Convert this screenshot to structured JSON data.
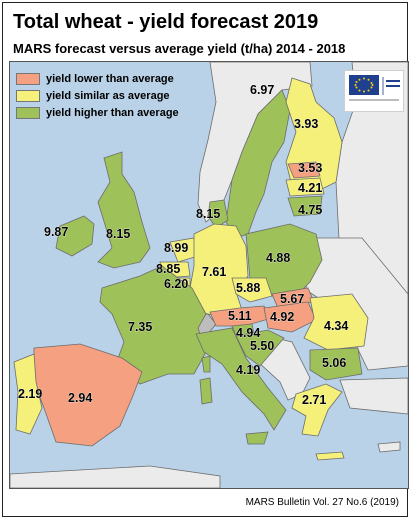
{
  "header": {
    "title": "Total wheat - yield forecast 2019",
    "subtitle": "MARS forecast versus average yield (t/ha) 2014 - 2018"
  },
  "legend": {
    "items": [
      {
        "label": "yield lower than average",
        "color": "#f4a081"
      },
      {
        "label": "yield similar as average",
        "color": "#f4f07a"
      },
      {
        "label": "yield higher than average",
        "color": "#9ec15a"
      }
    ]
  },
  "colors": {
    "sea": "#b9d2e8",
    "non_eu_land": "#ebebeb",
    "no_data": "#bdbdbd",
    "lower": "#f4a081",
    "similar": "#f4f07a",
    "higher": "#9ec15a"
  },
  "logo": {
    "name": "european-commission-logo",
    "text": "European Commission"
  },
  "map_values": [
    {
      "country": "Ireland",
      "value": "9.87",
      "category": "higher"
    },
    {
      "country": "United Kingdom",
      "value": "8.15",
      "category": "higher"
    },
    {
      "country": "Sweden",
      "value": "6.97",
      "category": "higher"
    },
    {
      "country": "Finland",
      "value": "3.93",
      "category": "similar"
    },
    {
      "country": "Estonia",
      "value": "3.53",
      "category": "lower"
    },
    {
      "country": "Latvia",
      "value": "4.21",
      "category": "similar"
    },
    {
      "country": "Lithuania",
      "value": "4.75",
      "category": "higher"
    },
    {
      "country": "Denmark",
      "value": "8.15",
      "category": "higher"
    },
    {
      "country": "Netherlands",
      "value": "8.99",
      "category": "similar"
    },
    {
      "country": "Belgium",
      "value": "8.85",
      "category": "similar"
    },
    {
      "country": "Luxembourg",
      "value": "6.20",
      "category": "similar"
    },
    {
      "country": "Germany",
      "value": "7.61",
      "category": "similar"
    },
    {
      "country": "Poland",
      "value": "4.88",
      "category": "higher"
    },
    {
      "country": "Czechia",
      "value": "5.88",
      "category": "similar"
    },
    {
      "country": "Slovakia",
      "value": "5.67",
      "category": "lower"
    },
    {
      "country": "France",
      "value": "7.35",
      "category": "higher"
    },
    {
      "country": "Austria",
      "value": "5.11",
      "category": "lower"
    },
    {
      "country": "Hungary",
      "value": "4.92",
      "category": "lower"
    },
    {
      "country": "Slovenia",
      "value": "4.94",
      "category": "higher"
    },
    {
      "country": "Croatia",
      "value": "5.50",
      "category": "higher"
    },
    {
      "country": "Romania",
      "value": "4.34",
      "category": "similar"
    },
    {
      "country": "Bulgaria",
      "value": "5.06",
      "category": "higher"
    },
    {
      "country": "Italy",
      "value": "4.19",
      "category": "higher"
    },
    {
      "country": "Portugal",
      "value": "2.19",
      "category": "similar"
    },
    {
      "country": "Spain",
      "value": "2.94",
      "category": "lower"
    },
    {
      "country": "Greece",
      "value": "2.71",
      "category": "similar"
    }
  ],
  "footer": {
    "source": "MARS Bulletin Vol. 27 No.6 (2019)"
  }
}
